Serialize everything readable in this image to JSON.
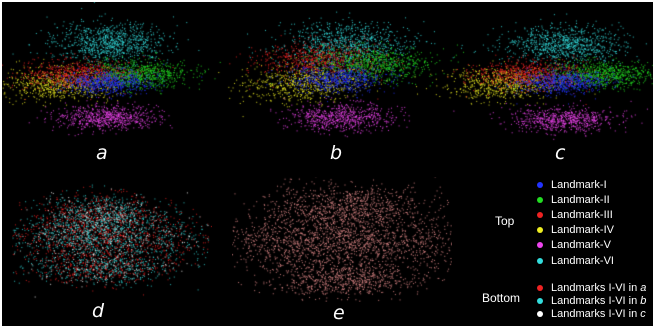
{
  "panels": [
    {
      "id": "a",
      "label": "a"
    },
    {
      "id": "b",
      "label": "b"
    },
    {
      "id": "c",
      "label": "c"
    },
    {
      "id": "d",
      "label": "d"
    },
    {
      "id": "e",
      "label": "e"
    }
  ],
  "legend": {
    "top_label": "Top",
    "bottom_label": "Bottom",
    "top_items": [
      {
        "label": "Landmark-I",
        "color": "#2233ff"
      },
      {
        "label": "Landmark-II",
        "color": "#22dd22"
      },
      {
        "label": "Landmark-III",
        "color": "#ee2222"
      },
      {
        "label": "Landmark-IV",
        "color": "#eeee22"
      },
      {
        "label": "Landmark-V",
        "color": "#ee44ee"
      },
      {
        "label": "Landmark-VI",
        "color": "#33dddd"
      }
    ],
    "bottom_items": [
      {
        "prefix": "Landmarks I-VI in ",
        "panel": "a",
        "color": "#ee2222"
      },
      {
        "prefix": "Landmarks I-VI in ",
        "panel": "b",
        "color": "#33dddd"
      },
      {
        "prefix": "Landmarks I-VI in ",
        "panel": "c",
        "color": "#ffffff"
      }
    ]
  },
  "colors": {
    "background": "#000000",
    "pink_cloud": "#e08888",
    "text": "#ffffff"
  }
}
